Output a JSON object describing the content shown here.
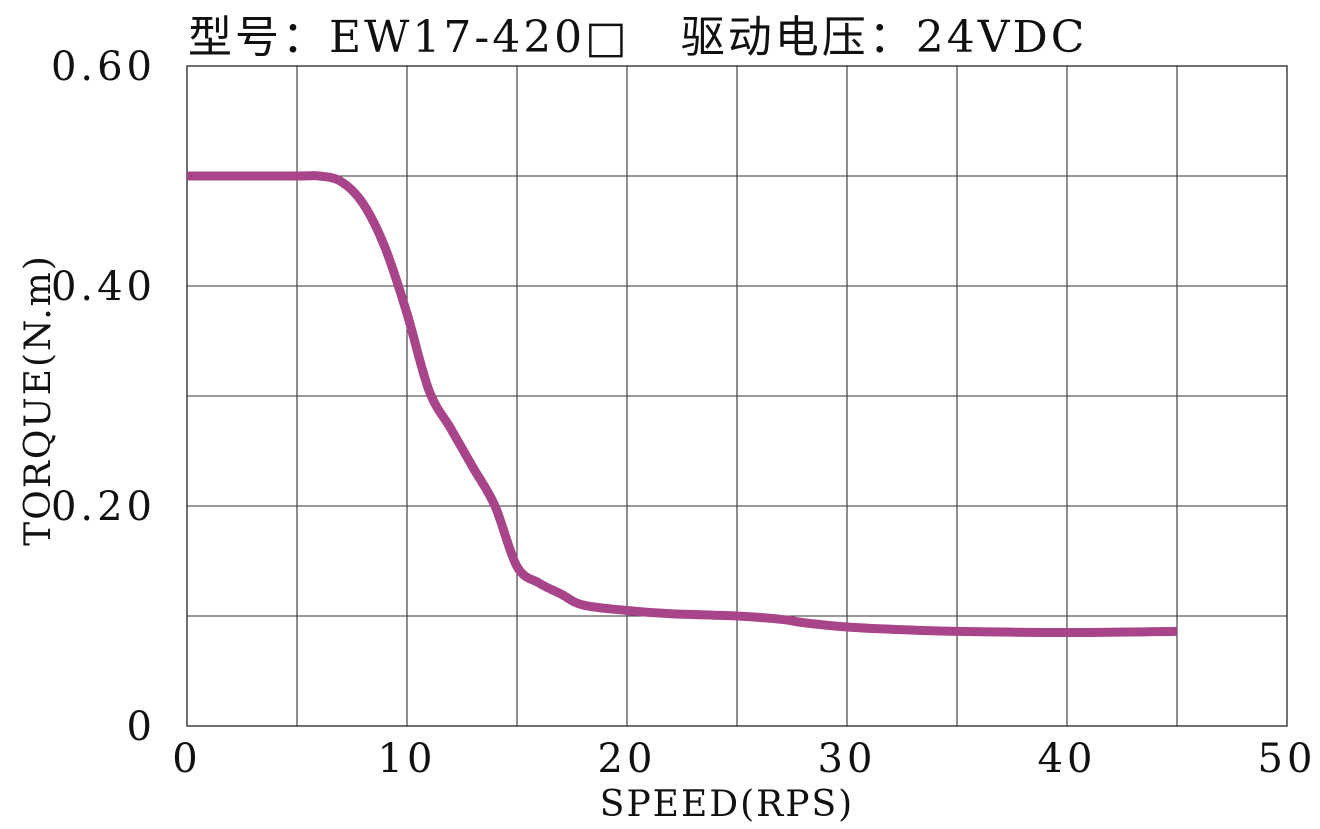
{
  "chart_data": {
    "type": "line",
    "title": "型号：EW17-420□   驱动电压：24VDC",
    "xlabel": "SPEED(RPS)",
    "ylabel": "TORQUE(N.m)",
    "xlim": [
      0,
      50
    ],
    "ylim": [
      0,
      0.6
    ],
    "x_ticks": [
      0,
      10,
      20,
      30,
      40,
      50
    ],
    "x_tick_labels": [
      "0",
      "10",
      "20",
      "30",
      "40",
      "50"
    ],
    "y_ticks": [
      0,
      0.2,
      0.4,
      0.6
    ],
    "y_tick_labels": [
      "0",
      "0.20",
      "0.40",
      "0.60"
    ],
    "grid": true,
    "x_grid_step": 5,
    "y_grid_step": 0.1,
    "line_color": "#A8458A",
    "series": [
      {
        "x": [
          0,
          5,
          6,
          7,
          8,
          9,
          10,
          11,
          12,
          13,
          14,
          15,
          16,
          17,
          18,
          20,
          22,
          25,
          27,
          28,
          30,
          32,
          35,
          40,
          45
        ],
        "y": [
          0.5,
          0.5,
          0.5,
          0.495,
          0.475,
          0.435,
          0.375,
          0.305,
          0.27,
          0.235,
          0.2,
          0.145,
          0.13,
          0.12,
          0.11,
          0.105,
          0.102,
          0.1,
          0.097,
          0.094,
          0.09,
          0.088,
          0.086,
          0.085,
          0.086
        ]
      }
    ]
  }
}
